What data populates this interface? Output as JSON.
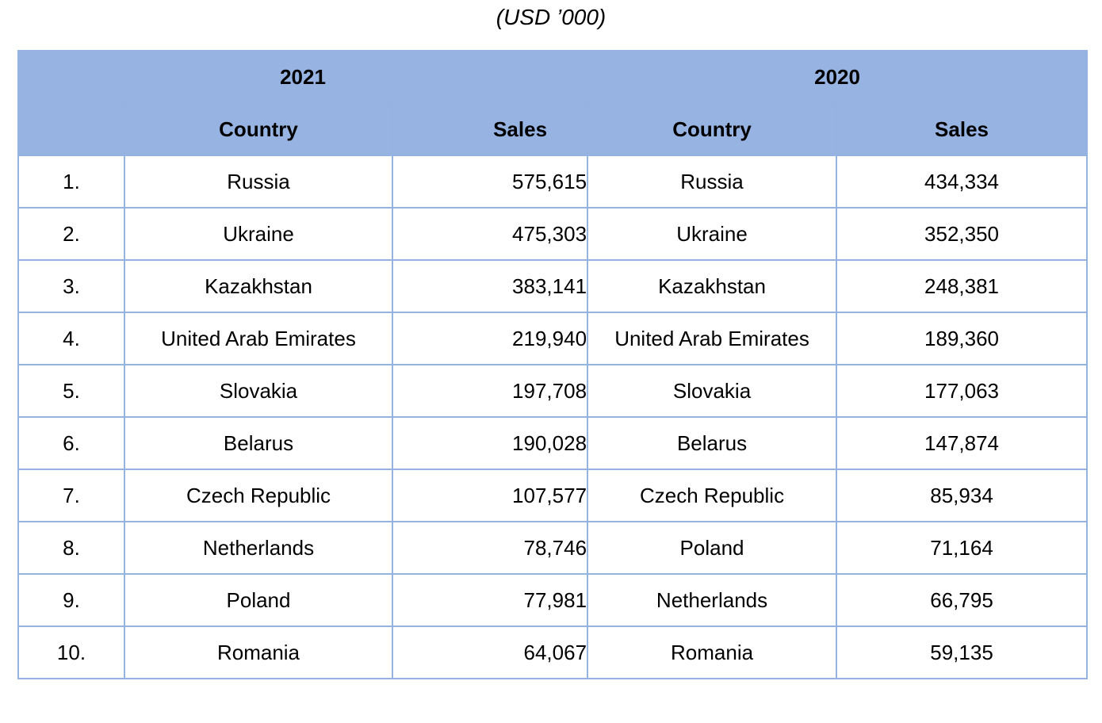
{
  "subtitle": "(USD ’000)",
  "header": {
    "year_2021": "2021",
    "year_2020": "2020",
    "country_label": "Country",
    "sales_label": "Sales"
  },
  "rows": [
    {
      "rank": "1.",
      "country_2021": "Russia",
      "sales_2021": "575,615",
      "country_2020": "Russia",
      "sales_2020": "434,334"
    },
    {
      "rank": "2.",
      "country_2021": "Ukraine",
      "sales_2021": "475,303",
      "country_2020": "Ukraine",
      "sales_2020": "352,350"
    },
    {
      "rank": "3.",
      "country_2021": "Kazakhstan",
      "sales_2021": "383,141",
      "country_2020": "Kazakhstan",
      "sales_2020": "248,381"
    },
    {
      "rank": "4.",
      "country_2021": "United Arab Emirates",
      "sales_2021": "219,940",
      "country_2020": "United Arab Emirates",
      "sales_2020": "189,360"
    },
    {
      "rank": "5.",
      "country_2021": "Slovakia",
      "sales_2021": "197,708",
      "country_2020": "Slovakia",
      "sales_2020": "177,063"
    },
    {
      "rank": "6.",
      "country_2021": "Belarus",
      "sales_2021": "190,028",
      "country_2020": "Belarus",
      "sales_2020": "147,874"
    },
    {
      "rank": "7.",
      "country_2021": "Czech Republic",
      "sales_2021": "107,577",
      "country_2020": "Czech Republic",
      "sales_2020": "85,934"
    },
    {
      "rank": "8.",
      "country_2021": "Netherlands",
      "sales_2021": "78,746",
      "country_2020": "Poland",
      "sales_2020": "71,164"
    },
    {
      "rank": "9.",
      "country_2021": "Poland",
      "sales_2021": "77,981",
      "country_2020": "Netherlands",
      "sales_2020": "66,795"
    },
    {
      "rank": "10.",
      "country_2021": "Romania",
      "sales_2021": "64,067",
      "country_2020": "Romania",
      "sales_2020": "59,135"
    }
  ],
  "colors": {
    "header_bg": "#96b3e1",
    "grid": "#95b3e0"
  }
}
